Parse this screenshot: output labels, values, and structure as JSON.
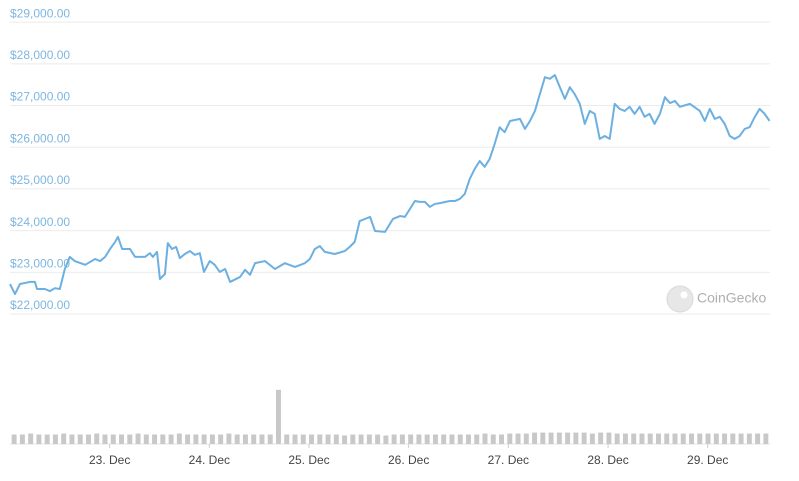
{
  "chart_data": {
    "type": "line",
    "watermark": "CoinGecko",
    "xlim": [
      0,
      183
    ],
    "xticks": [
      {
        "value": 24,
        "label": "23. Dec"
      },
      {
        "value": 48,
        "label": "24. Dec"
      },
      {
        "value": 72,
        "label": "25. Dec"
      },
      {
        "value": 96,
        "label": "26. Dec"
      },
      {
        "value": 120,
        "label": "27. Dec"
      },
      {
        "value": 144,
        "label": "28. Dec"
      },
      {
        "value": 168,
        "label": "29. Dec"
      }
    ],
    "ylim": [
      21840,
      29140
    ],
    "yticks": [
      {
        "value": 22000,
        "label": "$22,000.00"
      },
      {
        "value": 23000,
        "label": "$23,000.00"
      },
      {
        "value": 24000,
        "label": "$24,000.00"
      },
      {
        "value": 25000,
        "label": "$25,000.00"
      },
      {
        "value": 26000,
        "label": "$26,000.00"
      },
      {
        "value": 27000,
        "label": "$27,000.00"
      },
      {
        "value": 28000,
        "label": "$28,000.00"
      },
      {
        "value": 29000,
        "label": "$29,000.00"
      }
    ],
    "grid": true,
    "y2lim": [
      0,
      60
    ],
    "series": [
      {
        "color": "#6cb0e2",
        "x": [
          0,
          1.2,
          2.4,
          4.8,
          6.0,
          6.5,
          8.4,
          9.6,
          10.8,
          12.0,
          13.2,
          14.4,
          15.6,
          18.1,
          20.5,
          21.7,
          22.9,
          24.1,
          25.3,
          26.0,
          27.0,
          28.9,
          30.1,
          32.5,
          33.7,
          34.4,
          35.4,
          36.1,
          37.3,
          38.0,
          39.0,
          40.0,
          40.9,
          42.1,
          43.3,
          44.5,
          45.7,
          46.7,
          48.1,
          49.3,
          50.5,
          51.8,
          53.0,
          55.4,
          56.6,
          57.8,
          59.0,
          61.4,
          63.8,
          66.2,
          68.6,
          71.0,
          72.2,
          73.4,
          74.6,
          75.8,
          78.2,
          80.6,
          81.8,
          83.0,
          84.2,
          86.7,
          87.9,
          90.3,
          92.2,
          93.9,
          95.1,
          96.3,
          97.5,
          98.7,
          99.9,
          101.1,
          102.3,
          103.5,
          105.9,
          107.1,
          108.3,
          109.5,
          110.7,
          111.9,
          113.1,
          114.3,
          115.5,
          116.7,
          117.9,
          119.1,
          120.4,
          122.8,
          124.0,
          125.2,
          126.4,
          127.6,
          128.8,
          130.0,
          131.2,
          132.4,
          133.6,
          134.8,
          136.0,
          137.2,
          138.4,
          139.6,
          140.8,
          142.0,
          143.2,
          144.4,
          145.6,
          146.8,
          148.0,
          149.2,
          150.4,
          151.6,
          152.8,
          154.0,
          155.2,
          156.5,
          157.7,
          158.9,
          160.1,
          161.3,
          163.7,
          166.1,
          167.3,
          168.5,
          169.7,
          170.9,
          172.1,
          173.3,
          174.5,
          175.7,
          176.9,
          178.1,
          179.3,
          180.5,
          181.7,
          182.9
        ],
        "values": [
          22720,
          22480,
          22720,
          22770,
          22770,
          22600,
          22600,
          22550,
          22620,
          22600,
          23080,
          23370,
          23270,
          23180,
          23320,
          23270,
          23370,
          23560,
          23730,
          23850,
          23560,
          23560,
          23370,
          23370,
          23460,
          23370,
          23490,
          22840,
          22960,
          23700,
          23560,
          23610,
          23340,
          23440,
          23510,
          23420,
          23460,
          23010,
          23270,
          23180,
          23010,
          23080,
          22770,
          22890,
          23060,
          22940,
          23220,
          23270,
          23080,
          23220,
          23130,
          23220,
          23320,
          23560,
          23630,
          23490,
          23440,
          23510,
          23610,
          23730,
          24230,
          24330,
          23990,
          23970,
          24280,
          24350,
          24330,
          24520,
          24710,
          24690,
          24690,
          24570,
          24640,
          24660,
          24710,
          24710,
          24760,
          24880,
          25240,
          25480,
          25670,
          25530,
          25720,
          26080,
          26480,
          26360,
          26630,
          26680,
          26440,
          26630,
          26870,
          27280,
          27680,
          27640,
          27730,
          27440,
          27160,
          27440,
          27270,
          27040,
          26560,
          26870,
          26800,
          26200,
          26270,
          26200,
          27040,
          26920,
          26870,
          26970,
          26800,
          26970,
          26730,
          26800,
          26560,
          26800,
          27200,
          27060,
          27110,
          26970,
          27040,
          26870,
          26630,
          26920,
          26680,
          26730,
          26560,
          26270,
          26200,
          26270,
          26440,
          26480,
          26720,
          26920,
          26800,
          26630
        ]
      },
      {
        "color": "#c8c8c8",
        "axis": "y2",
        "values": [
          10,
          10,
          11,
          10,
          10,
          10,
          11,
          10,
          10,
          10,
          11,
          10,
          10,
          10,
          10,
          11,
          10,
          10,
          10,
          10,
          11,
          10,
          10,
          10,
          10,
          10,
          11,
          10,
          10,
          10,
          10,
          10,
          57,
          10,
          10,
          10,
          10,
          10,
          10,
          10,
          9,
          10,
          10,
          10,
          10,
          9,
          10,
          10,
          10,
          10,
          10,
          10,
          10,
          10,
          10,
          10,
          10,
          11,
          10,
          10,
          11,
          11,
          11,
          12,
          12,
          12,
          12,
          12,
          12,
          12,
          11,
          12,
          12,
          11,
          11,
          11,
          11,
          11,
          11,
          11,
          11,
          11,
          11,
          11,
          11,
          11,
          11,
          11,
          11,
          11,
          11,
          11
        ]
      }
    ]
  }
}
